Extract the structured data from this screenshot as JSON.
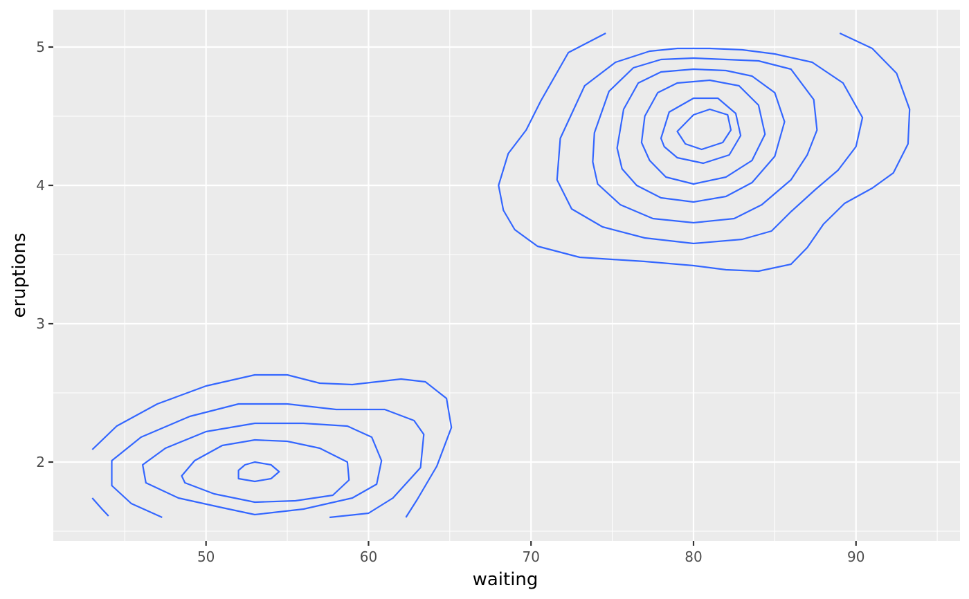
{
  "chart_data": {
    "type": "contour",
    "title": "",
    "xlabel": "waiting",
    "ylabel": "eruptions",
    "xlim": [
      40.6,
      96.4
    ],
    "ylim": [
      1.43,
      5.27
    ],
    "x_ticks": [
      50,
      60,
      70,
      80,
      90
    ],
    "y_ticks": [
      2,
      3,
      4,
      5
    ],
    "x_tick_labels": [
      "50",
      "60",
      "70",
      "80",
      "90"
    ],
    "y_tick_labels": [
      "2",
      "3",
      "4",
      "5"
    ],
    "grid": true,
    "legend": "none",
    "colors": {
      "panel": "#ebebeb",
      "grid": "#ffffff",
      "line": "#3366ff",
      "tick_text": "#4d4d4d",
      "axis_title": "#000000"
    },
    "contours": [
      {
        "points": [
          [
            74.6,
            5.1
          ],
          [
            72.3,
            4.96
          ],
          [
            70.6,
            4.61
          ],
          [
            69.7,
            4.4
          ],
          [
            68.6,
            4.23
          ],
          [
            68.0,
            4.0
          ],
          [
            68.3,
            3.82
          ],
          [
            69.0,
            3.68
          ],
          [
            70.4,
            3.56
          ],
          [
            73.0,
            3.48
          ],
          [
            77.0,
            3.45
          ],
          [
            80.0,
            3.42
          ],
          [
            82.0,
            3.39
          ],
          [
            84.0,
            3.38
          ],
          [
            86.0,
            3.43
          ],
          [
            87.0,
            3.55
          ],
          [
            88.0,
            3.72
          ],
          [
            89.3,
            3.87
          ],
          [
            91.0,
            3.98
          ],
          [
            92.3,
            4.09
          ],
          [
            93.2,
            4.3
          ],
          [
            93.3,
            4.55
          ],
          [
            92.5,
            4.81
          ],
          [
            91.0,
            4.99
          ],
          [
            89.0,
            5.1
          ]
        ]
      },
      {
        "points": [
          [
            71.6,
            4.04
          ],
          [
            71.8,
            4.34
          ],
          [
            73.3,
            4.72
          ],
          [
            75.2,
            4.89
          ],
          [
            77.3,
            4.97
          ],
          [
            79.0,
            4.99
          ],
          [
            81.0,
            4.99
          ],
          [
            83.0,
            4.98
          ],
          [
            85.0,
            4.95
          ],
          [
            87.3,
            4.89
          ],
          [
            89.2,
            4.74
          ],
          [
            90.4,
            4.49
          ],
          [
            90.0,
            4.28
          ],
          [
            88.9,
            4.11
          ],
          [
            87.5,
            3.97
          ],
          [
            86.0,
            3.81
          ],
          [
            84.8,
            3.67
          ],
          [
            83.0,
            3.61
          ],
          [
            80.0,
            3.58
          ],
          [
            77.0,
            3.62
          ],
          [
            74.4,
            3.7
          ],
          [
            72.5,
            3.83
          ]
        ]
      },
      {
        "points": [
          [
            73.8,
            4.17
          ],
          [
            73.9,
            4.38
          ],
          [
            74.8,
            4.68
          ],
          [
            76.3,
            4.85
          ],
          [
            78.0,
            4.91
          ],
          [
            80.0,
            4.92
          ],
          [
            82.0,
            4.91
          ],
          [
            84.0,
            4.9
          ],
          [
            86.0,
            4.84
          ],
          [
            87.4,
            4.62
          ],
          [
            87.6,
            4.4
          ],
          [
            87.0,
            4.22
          ],
          [
            86.0,
            4.04
          ],
          [
            84.2,
            3.86
          ],
          [
            82.5,
            3.76
          ],
          [
            80.0,
            3.73
          ],
          [
            77.5,
            3.76
          ],
          [
            75.5,
            3.86
          ],
          [
            74.1,
            4.01
          ]
        ]
      },
      {
        "points": [
          [
            75.3,
            4.27
          ],
          [
            75.7,
            4.55
          ],
          [
            76.6,
            4.74
          ],
          [
            78.0,
            4.82
          ],
          [
            80.0,
            4.84
          ],
          [
            82.0,
            4.83
          ],
          [
            83.6,
            4.79
          ],
          [
            85.0,
            4.67
          ],
          [
            85.6,
            4.46
          ],
          [
            85.0,
            4.21
          ],
          [
            83.6,
            4.02
          ],
          [
            82.0,
            3.92
          ],
          [
            80.0,
            3.88
          ],
          [
            78.0,
            3.91
          ],
          [
            76.5,
            4.0
          ],
          [
            75.6,
            4.12
          ]
        ]
      },
      {
        "points": [
          [
            76.8,
            4.31
          ],
          [
            77.0,
            4.5
          ],
          [
            77.8,
            4.67
          ],
          [
            79.0,
            4.74
          ],
          [
            81.0,
            4.76
          ],
          [
            82.8,
            4.72
          ],
          [
            84.0,
            4.58
          ],
          [
            84.4,
            4.37
          ],
          [
            83.6,
            4.18
          ],
          [
            82.0,
            4.06
          ],
          [
            80.0,
            4.01
          ],
          [
            78.3,
            4.06
          ],
          [
            77.3,
            4.18
          ]
        ]
      },
      {
        "points": [
          [
            78.0,
            4.34
          ],
          [
            78.5,
            4.53
          ],
          [
            80.0,
            4.63
          ],
          [
            81.5,
            4.63
          ],
          [
            82.6,
            4.52
          ],
          [
            82.9,
            4.36
          ],
          [
            82.2,
            4.22
          ],
          [
            80.6,
            4.16
          ],
          [
            79.0,
            4.2
          ],
          [
            78.2,
            4.28
          ]
        ]
      },
      {
        "points": [
          [
            79.0,
            4.39
          ],
          [
            80.0,
            4.51
          ],
          [
            81.0,
            4.55
          ],
          [
            82.1,
            4.51
          ],
          [
            82.3,
            4.4
          ],
          [
            81.8,
            4.31
          ],
          [
            80.5,
            4.26
          ],
          [
            79.5,
            4.3
          ]
        ]
      },
      {
        "points": [
          [
            43.0,
            2.09
          ],
          [
            44.5,
            2.26
          ],
          [
            47.0,
            2.42
          ],
          [
            50.0,
            2.55
          ],
          [
            53.0,
            2.63
          ],
          [
            55.0,
            2.63
          ],
          [
            57.0,
            2.57
          ],
          [
            59.0,
            2.56
          ],
          [
            62.0,
            2.6
          ],
          [
            63.5,
            2.58
          ],
          [
            64.8,
            2.46
          ],
          [
            65.1,
            2.25
          ],
          [
            64.2,
            1.97
          ],
          [
            63.0,
            1.73
          ],
          [
            62.3,
            1.6
          ]
        ]
      },
      {
        "points": [
          [
            43.0,
            1.74
          ],
          [
            43.6,
            1.66
          ],
          [
            44.0,
            1.61
          ]
        ]
      },
      {
        "points": [
          [
            47.3,
            1.6
          ],
          [
            45.4,
            1.7
          ],
          [
            44.2,
            1.83
          ],
          [
            44.2,
            2.01
          ],
          [
            46.0,
            2.18
          ],
          [
            49.0,
            2.33
          ],
          [
            52.0,
            2.42
          ],
          [
            55.0,
            2.42
          ],
          [
            58.0,
            2.38
          ],
          [
            61.0,
            2.38
          ],
          [
            62.8,
            2.3
          ],
          [
            63.4,
            2.2
          ],
          [
            63.2,
            1.96
          ],
          [
            61.5,
            1.74
          ],
          [
            60.0,
            1.63
          ],
          [
            57.6,
            1.6
          ]
        ]
      },
      {
        "points": [
          [
            46.1,
            1.98
          ],
          [
            46.3,
            1.85
          ],
          [
            48.3,
            1.74
          ],
          [
            51.0,
            1.67
          ],
          [
            53.0,
            1.62
          ],
          [
            56.0,
            1.66
          ],
          [
            59.0,
            1.74
          ],
          [
            60.5,
            1.84
          ],
          [
            60.8,
            2.01
          ],
          [
            60.2,
            2.18
          ],
          [
            58.7,
            2.26
          ],
          [
            56.0,
            2.28
          ],
          [
            53.0,
            2.28
          ],
          [
            50.0,
            2.22
          ],
          [
            47.5,
            2.1
          ]
        ]
      },
      {
        "points": [
          [
            48.5,
            1.9
          ],
          [
            49.3,
            2.01
          ],
          [
            51.0,
            2.12
          ],
          [
            53.0,
            2.16
          ],
          [
            55.0,
            2.15
          ],
          [
            57.0,
            2.1
          ],
          [
            58.7,
            2.0
          ],
          [
            58.8,
            1.87
          ],
          [
            57.8,
            1.76
          ],
          [
            55.5,
            1.72
          ],
          [
            53.0,
            1.71
          ],
          [
            50.5,
            1.77
          ],
          [
            48.7,
            1.85
          ]
        ]
      },
      {
        "points": [
          [
            52.0,
            1.94
          ],
          [
            52.4,
            1.98
          ],
          [
            53.0,
            2.0
          ],
          [
            54.0,
            1.98
          ],
          [
            54.5,
            1.93
          ],
          [
            54.0,
            1.88
          ],
          [
            53.0,
            1.86
          ],
          [
            52.0,
            1.88
          ]
        ]
      }
    ]
  }
}
